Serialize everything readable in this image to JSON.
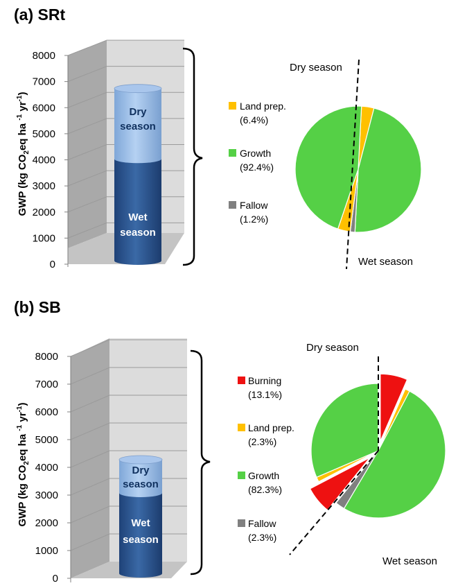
{
  "chart_data": [
    {
      "panel_title": "(a) SRt",
      "type": "bar",
      "ylabel": "GWP (kg CO2eq ha -1 yr-1)",
      "ylim": [
        0,
        8000
      ],
      "yticks": [
        0,
        1000,
        2000,
        3000,
        4000,
        5000,
        6000,
        7000,
        8000
      ],
      "grid": true,
      "stack": [
        {
          "name": "Wet season",
          "value": 3900,
          "color": "#2e5b95"
        },
        {
          "name": "Dry season",
          "value": 2700,
          "color": "#9fc1ea"
        }
      ],
      "pie": {
        "type": "pie",
        "slices": [
          {
            "label": "Land prep.",
            "pct_label": "(6.4%)",
            "value": 6.4,
            "color": "#ffc000",
            "exploded": false
          },
          {
            "label": "Growth",
            "pct_label": "(92.4%)",
            "value": 92.4,
            "color": "#55d046",
            "exploded": false
          },
          {
            "label": "Fallow",
            "pct_label": "(1.2%)",
            "value": 1.2,
            "color": "#808080",
            "exploded": false
          }
        ],
        "annotations": [
          "Dry season",
          "Wet season"
        ]
      }
    },
    {
      "panel_title": "(b) SB",
      "type": "bar",
      "ylabel": "GWP (kg CO2eq ha -1 yr-1)",
      "ylim": [
        0,
        8000
      ],
      "yticks": [
        0,
        1000,
        2000,
        3000,
        4000,
        5000,
        6000,
        7000,
        8000
      ],
      "grid": true,
      "stack": [
        {
          "name": "Wet season",
          "value": 2900,
          "color": "#2e5b95"
        },
        {
          "name": "Dry season",
          "value": 1200,
          "color": "#9fc1ea"
        }
      ],
      "pie": {
        "type": "pie",
        "slices": [
          {
            "label": "Burning",
            "pct_label": "(13.1%)",
            "value": 13.1,
            "color": "#ee1111",
            "exploded": true
          },
          {
            "label": "Land prep.",
            "pct_label": "(2.3%)",
            "value": 2.3,
            "color": "#ffc000",
            "exploded": false
          },
          {
            "label": "Growth",
            "pct_label": "(82.3%)",
            "value": 82.3,
            "color": "#55d046",
            "exploded": false
          },
          {
            "label": "Fallow",
            "pct_label": "(2.3%)",
            "value": 2.3,
            "color": "#808080",
            "exploded": false
          }
        ],
        "annotations": [
          "Dry season",
          "Wet season"
        ]
      }
    }
  ]
}
